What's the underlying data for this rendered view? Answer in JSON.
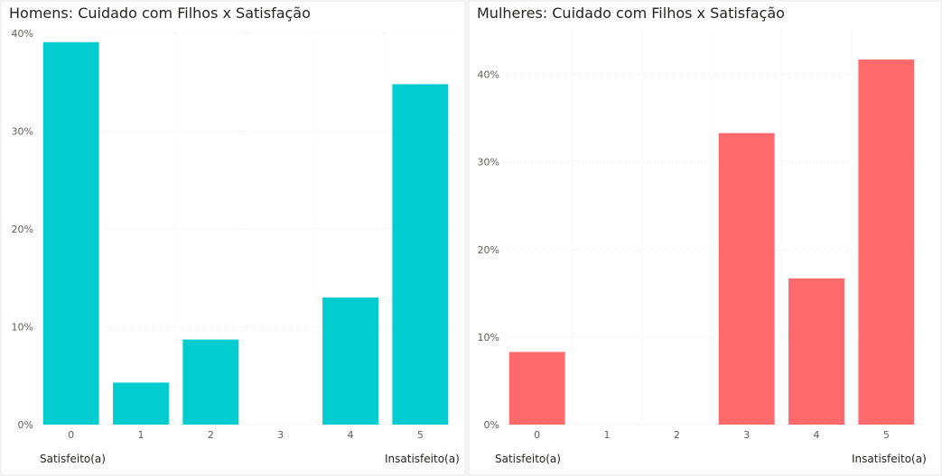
{
  "charts": [
    {
      "title": "Homens: Cuidado com Filhos x Satisfação",
      "left_label": "Satisfeito(a)",
      "right_label": "Insatisfeito(a)"
    },
    {
      "title": "Mulheres: Cuidado com Filhos x Satisfação",
      "left_label": "Satisfeito(a)",
      "right_label": "Insatisfeito(a)"
    }
  ],
  "chart_data": [
    {
      "type": "bar",
      "title": "Homens: Cuidado com Filhos x Satisfação",
      "categories": [
        "0",
        "1",
        "2",
        "3",
        "4",
        "5"
      ],
      "values": [
        39.1,
        4.3,
        8.7,
        0,
        13.0,
        34.8
      ],
      "yticks": [
        "0%",
        "10%",
        "20%",
        "30%",
        "40%"
      ],
      "ylim": [
        0,
        40
      ],
      "xlabel": "",
      "ylabel": "",
      "grid": true,
      "color": "#01cdd0"
    },
    {
      "type": "bar",
      "title": "Mulheres: Cuidado com Filhos x Satisfação",
      "categories": [
        "0",
        "1",
        "2",
        "3",
        "4",
        "5"
      ],
      "values": [
        8.3,
        0,
        0,
        33.3,
        16.7,
        41.7
      ],
      "yticks": [
        "0%",
        "10%",
        "20%",
        "30%",
        "40%"
      ],
      "ylim": [
        0,
        45
      ],
      "xlabel": "",
      "ylabel": "",
      "grid": true,
      "color": "#fe6a6b"
    }
  ]
}
